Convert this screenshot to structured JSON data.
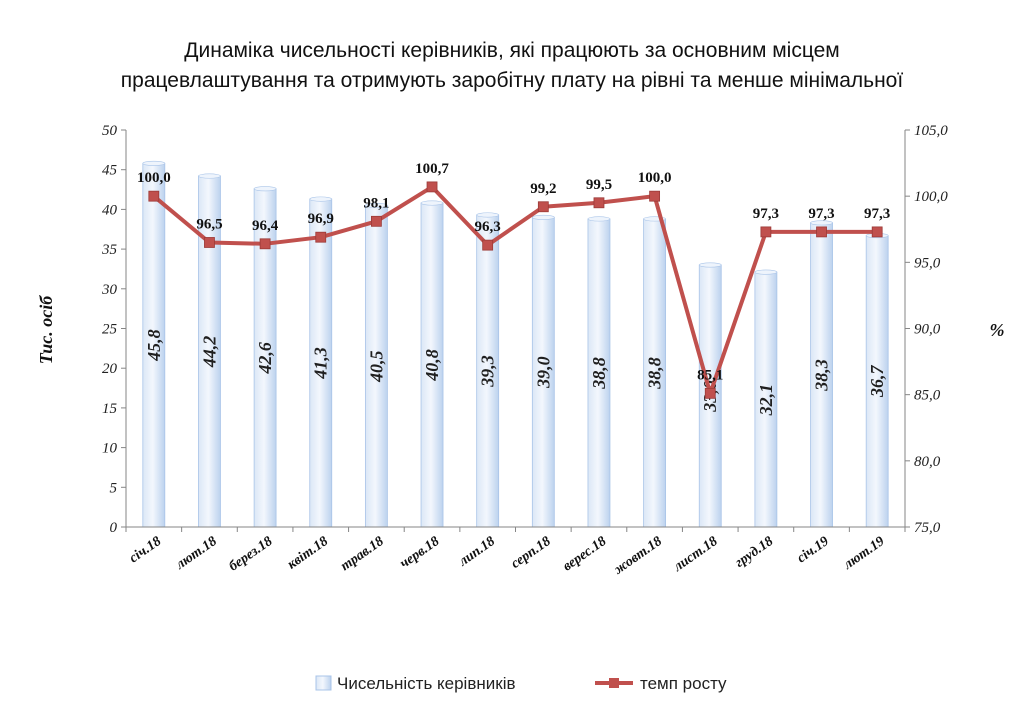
{
  "chart_data": {
    "type": "bar",
    "title": [
      "Динаміка чисельності керівників, які працюють за основним місцем",
      "працевлаштування та отримують заробітну плату на рівні та менше мінімальної"
    ],
    "categories": [
      "січ.18",
      "лют.18",
      "берез.18",
      "квіт.18",
      "трав.18",
      "черв.18",
      "лип.18",
      "серп.18",
      "верес.18",
      "жовт.18",
      "лист.18",
      "груд.18",
      "січ.19",
      "лют.19"
    ],
    "series": [
      {
        "name": "Чисельність керівників",
        "type": "bar",
        "axis": "left",
        "values": [
          45.8,
          44.2,
          42.6,
          41.3,
          40.5,
          40.8,
          39.3,
          39.0,
          38.8,
          38.8,
          33.0,
          32.1,
          38.3,
          36.7
        ],
        "labels": [
          "45,8",
          "44,2",
          "42,6",
          "41,3",
          "40,5",
          "40,8",
          "39,3",
          "39,0",
          "38,8",
          "38,8",
          "33,0",
          "32,1",
          "38,3",
          "36,7"
        ]
      },
      {
        "name": "темп росту",
        "type": "line",
        "axis": "right",
        "values": [
          100.0,
          96.5,
          96.4,
          96.9,
          98.1,
          100.7,
          96.3,
          99.2,
          99.5,
          100.0,
          85.1,
          97.3,
          97.3,
          97.3
        ],
        "labels": [
          "100,0",
          "96,5",
          "96,4",
          "96,9",
          "98,1",
          "100,7",
          "96,3",
          "99,2",
          "99,5",
          "100,0",
          "85,1",
          "97,3",
          "97,3",
          "97,3"
        ]
      }
    ],
    "ylabel": "Тис. осіб",
    "y2label": "%",
    "ylim": [
      0,
      50
    ],
    "y2lim": [
      75,
      105
    ],
    "yticks": [
      "0",
      "5",
      "10",
      "15",
      "20",
      "25",
      "30",
      "35",
      "40",
      "45",
      "50"
    ],
    "y2ticks": [
      "75,0",
      "80,0",
      "85,0",
      "90,0",
      "95,0",
      "100,0",
      "105,0"
    ],
    "grid": false,
    "legend": "bottom",
    "colors": {
      "bar": "#c6d9f1",
      "bar_edge": "#a9c4e8",
      "line": "#c0504d",
      "marker": "#c0504d"
    }
  }
}
